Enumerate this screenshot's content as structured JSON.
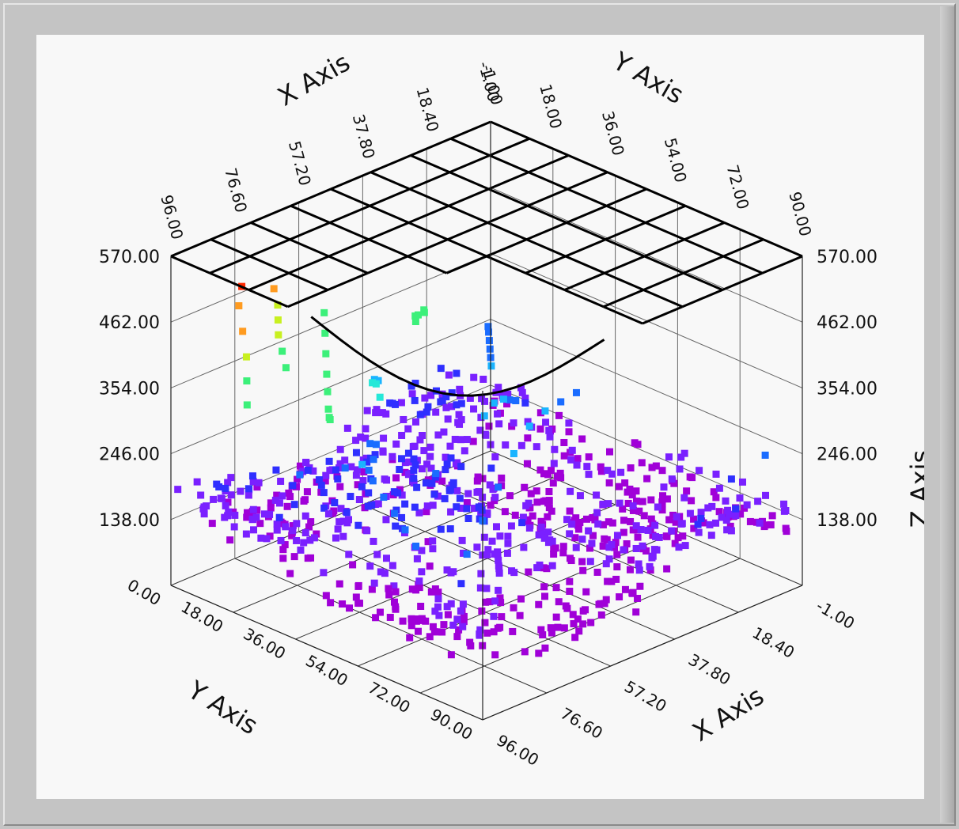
{
  "chart_data": {
    "type": "scatter",
    "subtype": "3d-scatter-with-wireframe-surface",
    "axes": {
      "x": {
        "title": "X Axis",
        "ticks": [
          "-1.00",
          "18.40",
          "37.80",
          "57.20",
          "76.60",
          "96.00"
        ],
        "range": [
          -1,
          96
        ]
      },
      "y": {
        "title": "Y Axis",
        "ticks": [
          "0.00",
          "18.00",
          "36.00",
          "54.00",
          "72.00",
          "90.00"
        ],
        "range": [
          0,
          90
        ]
      },
      "z_left": {
        "title": "Z Axis",
        "ticks": [
          "138.00",
          "246.00",
          "354.00",
          "462.00",
          "570.00"
        ],
        "range": [
          30,
          570
        ]
      },
      "z_right": {
        "title": "Z Axis",
        "ticks": [
          "138.00",
          "246.00",
          "354.00",
          "462.00",
          "570.00"
        ],
        "range": [
          30,
          570
        ]
      },
      "top_x": {
        "title": "X Axis",
        "ticks": [
          "96.00",
          "76.60",
          "57.20",
          "37.80",
          "18.40",
          "-1.00"
        ]
      },
      "top_y": {
        "title": "Y Axis",
        "ticks": [
          "-1.00",
          "18.00",
          "36.00",
          "54.00",
          "72.00",
          "90.00"
        ]
      }
    },
    "grid": true,
    "colormap": [
      "#a000d8",
      "#7a20ff",
      "#2f2fff",
      "#1a6cff",
      "#1ab4ff",
      "#25e8d8",
      "#3cf07a",
      "#c8f020",
      "#ff9b20",
      "#ff2800"
    ],
    "point_marker": "square",
    "surface": {
      "style": "wireframe",
      "color": "#000000",
      "grid_x": 8,
      "grid_y": 8,
      "level": 570,
      "cut_corner": "near-right"
    },
    "series": [
      {
        "values_description": "point cloud",
        "points": [
          [
            5,
            85,
            245
          ],
          [
            10,
            80,
            205
          ],
          [
            20,
            70,
            190
          ],
          [
            30,
            60,
            175
          ],
          [
            40,
            50,
            160
          ],
          [
            50,
            40,
            150
          ],
          [
            60,
            30,
            140
          ],
          [
            70,
            20,
            150
          ],
          [
            80,
            15,
            170
          ],
          [
            90,
            10,
            200
          ],
          [
            10,
            10,
            120
          ],
          [
            20,
            15,
            130
          ],
          [
            30,
            20,
            125
          ],
          [
            40,
            25,
            135
          ],
          [
            50,
            30,
            120
          ],
          [
            60,
            40,
            118
          ],
          [
            70,
            50,
            125
          ],
          [
            80,
            60,
            130
          ],
          [
            90,
            70,
            120
          ],
          [
            95,
            80,
            110
          ],
          [
            15,
            40,
            260
          ],
          [
            25,
            45,
            280
          ],
          [
            35,
            50,
            300
          ],
          [
            45,
            55,
            310
          ],
          [
            55,
            60,
            300
          ],
          [
            65,
            65,
            280
          ],
          [
            75,
            70,
            260
          ],
          [
            85,
            75,
            240
          ],
          [
            92,
            80,
            220
          ],
          [
            60,
            10,
            420
          ],
          [
            65,
            15,
            410
          ],
          [
            70,
            20,
            400
          ],
          [
            75,
            25,
            390
          ],
          [
            80,
            30,
            385
          ],
          [
            85,
            35,
            380
          ],
          [
            90,
            40,
            390
          ],
          [
            95,
            45,
            410
          ],
          [
            85,
            10,
            520
          ],
          [
            88,
            12,
            500
          ],
          [
            90,
            15,
            470
          ],
          [
            92,
            18,
            440
          ],
          [
            94,
            20,
            410
          ],
          [
            96,
            22,
            380
          ],
          [
            70,
            5,
            470
          ],
          [
            72,
            8,
            455
          ],
          [
            74,
            10,
            440
          ],
          [
            76,
            12,
            425
          ],
          [
            78,
            15,
            410
          ],
          [
            80,
            18,
            395
          ],
          [
            40,
            70,
            175
          ],
          [
            45,
            72,
            180
          ],
          [
            50,
            75,
            185
          ],
          [
            55,
            78,
            190
          ],
          [
            35,
            65,
            170
          ],
          [
            30,
            62,
            165
          ],
          [
            20,
            30,
            230
          ],
          [
            25,
            32,
            250
          ],
          [
            30,
            35,
            270
          ],
          [
            35,
            38,
            290
          ],
          [
            40,
            40,
            300
          ],
          [
            45,
            42,
            295
          ],
          [
            50,
            15,
            300
          ],
          [
            52,
            18,
            310
          ],
          [
            55,
            20,
            320
          ],
          [
            58,
            22,
            330
          ],
          [
            60,
            25,
            340
          ],
          [
            62,
            28,
            330
          ],
          [
            80,
            40,
            290
          ],
          [
            82,
            45,
            280
          ],
          [
            84,
            50,
            270
          ],
          [
            86,
            55,
            260
          ],
          [
            88,
            60,
            250
          ],
          [
            90,
            65,
            240
          ],
          [
            10,
            50,
            110
          ],
          [
            15,
            55,
            115
          ],
          [
            25,
            60,
            118
          ],
          [
            35,
            70,
            125
          ],
          [
            45,
            80,
            120
          ],
          [
            55,
            85,
            115
          ],
          [
            65,
            88,
            120
          ],
          [
            75,
            90,
            125
          ],
          [
            5,
            5,
            260
          ],
          [
            8,
            8,
            265
          ],
          [
            12,
            12,
            270
          ],
          [
            16,
            16,
            275
          ],
          [
            20,
            20,
            280
          ],
          [
            24,
            24,
            285
          ],
          [
            35,
            15,
            380
          ],
          [
            38,
            18,
            390
          ],
          [
            42,
            20,
            400
          ],
          [
            45,
            22,
            410
          ],
          [
            48,
            25,
            415
          ],
          [
            60,
            60,
            150
          ],
          [
            62,
            62,
            155
          ],
          [
            65,
            65,
            160
          ],
          [
            68,
            68,
            165
          ],
          [
            70,
            70,
            170
          ],
          [
            72,
            72,
            172
          ]
        ]
      }
    ]
  }
}
